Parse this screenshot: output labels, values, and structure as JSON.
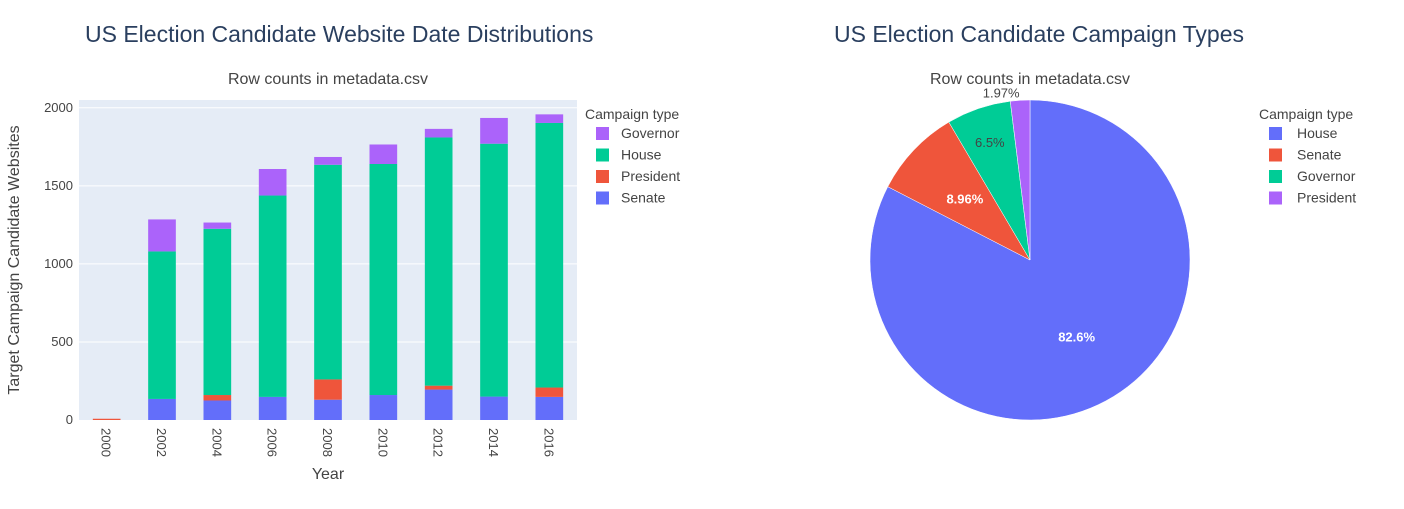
{
  "chart_data": [
    {
      "type": "bar",
      "barmode": "stack",
      "title": "US Election Candidate Website Date Distributions",
      "subtitle": "Row counts in metadata.csv",
      "xlabel": "Year",
      "ylabel": "Target Campaign Candidate Websites",
      "categories": [
        "2000",
        "2002",
        "2004",
        "2006",
        "2008",
        "2010",
        "2012",
        "2014",
        "2016"
      ],
      "ylim": [
        0,
        2050
      ],
      "yticks": [
        0,
        500,
        1000,
        1500,
        2000
      ],
      "legend_title": "Campaign type",
      "legend_position": "top-right",
      "series": [
        {
          "name": "Senate",
          "color": "#636efa",
          "values": [
            0,
            135,
            125,
            148,
            130,
            160,
            195,
            150,
            148
          ]
        },
        {
          "name": "President",
          "color": "#ef553b",
          "values": [
            8,
            0,
            35,
            0,
            130,
            0,
            25,
            0,
            60
          ]
        },
        {
          "name": "House",
          "color": "#00cc96",
          "values": [
            0,
            945,
            1065,
            1290,
            1375,
            1480,
            1590,
            1620,
            1695
          ]
        },
        {
          "name": "Governor",
          "color": "#ab63fa",
          "values": [
            0,
            205,
            40,
            170,
            50,
            125,
            55,
            165,
            55
          ]
        }
      ],
      "legend_order": [
        "Governor",
        "House",
        "President",
        "Senate"
      ]
    },
    {
      "type": "pie",
      "title": "US Election Candidate Campaign Types",
      "subtitle": "Row counts in metadata.csv",
      "legend_title": "Campaign type",
      "legend_position": "top-right",
      "slices": [
        {
          "label": "House",
          "value": 82.6,
          "text": "82.6%",
          "color": "#636efa"
        },
        {
          "label": "Senate",
          "value": 8.96,
          "text": "8.96%",
          "color": "#ef553b"
        },
        {
          "label": "Governor",
          "value": 6.5,
          "text": "6.5%",
          "color": "#00cc96"
        },
        {
          "label": "President",
          "value": 1.97,
          "text": "1.97%",
          "color": "#ab63fa"
        }
      ]
    }
  ]
}
